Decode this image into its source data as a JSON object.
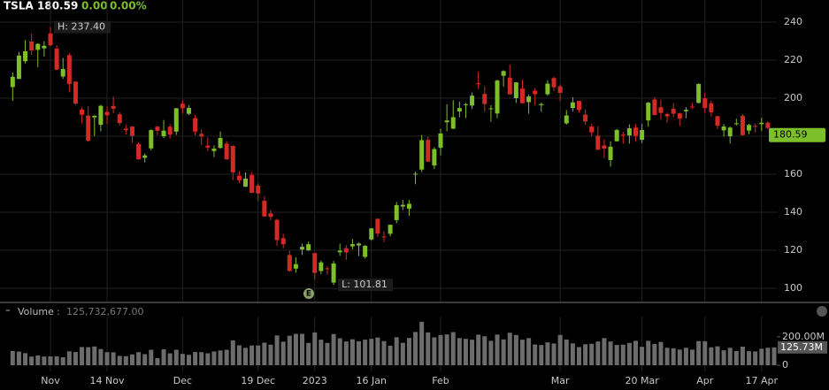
{
  "chart_data": {
    "type": "candlestick",
    "header": {
      "symbol": "TSLA",
      "last": "180.59",
      "change": "0.00",
      "change_pct": "0.00%"
    },
    "annotations": {
      "high": "H: 237.40",
      "low": "L: 101.81",
      "earnings": "E"
    },
    "categories": [
      null,
      null,
      null,
      null,
      null,
      null,
      "Nov",
      null,
      null,
      null,
      null,
      null,
      null,
      null,
      null,
      "14 Nov",
      null,
      null,
      null,
      null,
      null,
      null,
      null,
      null,
      null,
      null,
      null,
      "Dec",
      null,
      null,
      null,
      null,
      null,
      null,
      null,
      null,
      null,
      null,
      null,
      "19 Dec",
      null,
      null,
      null,
      null,
      null,
      null,
      null,
      null,
      "2023",
      null,
      null,
      null,
      null,
      null,
      null,
      null,
      null,
      "16 Jan",
      null,
      null,
      null,
      null,
      null,
      null,
      null,
      null,
      null,
      null,
      "Feb",
      null,
      null,
      null,
      null,
      null,
      null,
      null,
      null,
      null,
      null,
      null,
      null,
      null,
      null,
      null,
      null,
      null,
      null,
      "Mar",
      null,
      null,
      null,
      null,
      null,
      null,
      null,
      null,
      null,
      null,
      null,
      null,
      "20 Mar",
      null,
      null,
      null,
      null,
      null,
      null,
      null,
      null,
      null,
      "Apr",
      null,
      null,
      null,
      null,
      null,
      null,
      null,
      null,
      "17 Apr",
      null,
      null
    ],
    "open": [
      205.82,
      210.1,
      219.4,
      229.77,
      225.4,
      226.19,
      234.05,
      226.04,
      211.36,
      222.6,
      208.65,
      194.02,
      190.78,
      189.9,
      186.0,
      192.77,
      195.88,
      191.51,
      183.96,
      185.05,
      175.85,
      168.63,
      173.57,
      185.06,
      179.96,
      184.99,
      182.43,
      197.08,
      191.78,
      189.44,
      181.22,
      175.03,
      172.2,
      173.84,
      176.1,
      174.87,
      159.25,
      153.44,
      159.64,
      154.0,
      146.05,
      139.34,
      136.0,
      126.37,
      117.5,
      110.35,
      120.39,
      119.95,
      118.47,
      109.11,
      110.51,
      103.0,
      118.96,
      121.07,
      122.09,
      122.56,
      116.55,
      125.7,
      136.56,
      127.26,
      128.68,
      135.87,
      143.0,
      141.91,
      159.97,
      162.43,
      178.05,
      164.57,
      173.89,
      187.33,
      183.95,
      193.01,
      196.43,
      196.1,
      207.78,
      202.23,
      194.42,
      191.94,
      211.76,
      210.78,
      199.99,
      204.99,
      197.93,
      203.91,
      196.33,
      202.03,
      210.59,
      206.21,
      186.74,
      194.8,
      198.54,
      191.38,
      185.04,
      180.25,
      175.13,
      167.46,
      177.31,
      180.8,
      180.37,
      184.52,
      178.08,
      188.28,
      199.3,
      195.26,
      191.65,
      194.42,
      192.0,
      193.13,
      195.58,
      197.53,
      199.91,
      197.32,
      190.52,
      183.08,
      179.94,
      186.69,
      190.74,
      182.95,
      185.36,
      186.32,
      187.15,
      179.1
    ],
    "high": [
      213.5,
      224.35,
      230.6,
      233.81,
      228.86,
      229.85,
      237.4,
      227.87,
      221.2,
      223.8,
      208.9,
      195.2,
      195.89,
      191.0,
      196.52,
      195.73,
      200.82,
      192.57,
      186.16,
      185.19,
      176.77,
      170.92,
      183.62,
      185.2,
      188.5,
      186.38,
      194.76,
      198.92,
      196.25,
      191.27,
      183.65,
      179.38,
      175.2,
      182.5,
      177.37,
      175.05,
      161.62,
      160.93,
      160.99,
      155.25,
      148.47,
      141.26,
      136.63,
      128.62,
      119.67,
      116.27,
      123.57,
      124.48,
      118.8,
      114.59,
      111.75,
      114.39,
      123.52,
      122.76,
      125.95,
      124.13,
      122.63,
      131.7,
      136.68,
      129.99,
      133.51,
      145.38,
      146.5,
      146.41,
      161.42,
      180.68,
      179.77,
      174.3,
      183.81,
      196.75,
      199.0,
      198.17,
      197.5,
      203.0,
      214.0,
      206.2,
      196.3,
      209.82,
      214.66,
      217.65,
      208.44,
      209.71,
      201.99,
      205.14,
      197.67,
      209.42,
      211.23,
      207.2,
      193.75,
      200.48,
      198.6,
      194.2,
      186.5,
      185.18,
      178.29,
      177.35,
      183.8,
      182.34,
      186.22,
      186.22,
      186.44,
      198.0,
      200.66,
      199.31,
      192.36,
      197.39,
      192.35,
      195.29,
      197.33,
      207.79,
      202.69,
      198.74,
      190.68,
      186.39,
      185.1,
      189.19,
      191.58,
      186.5,
      186.57,
      189.69,
      187.69,
      183.5
    ],
    "low": [
      198.59,
      210.0,
      218.2,
      222.85,
      216.35,
      221.94,
      227.28,
      214.82,
      210.14,
      203.08,
      196.66,
      186.75,
      177.12,
      180.03,
      182.59,
      186.34,
      192.06,
      185.66,
      180.9,
      176.55,
      167.54,
      166.19,
      172.5,
      180.63,
      179.0,
      178.75,
      180.63,
      191.8,
      191.11,
      180.55,
      175.33,
      172.22,
      169.06,
      173.36,
      167.52,
      156.91,
      155.31,
      153.28,
      150.04,
      145.82,
      137.66,
      135.89,
      122.26,
      121.02,
      108.76,
      108.24,
      117.5,
      119.75,
      104.64,
      107.52,
      107.16,
      101.81,
      117.11,
      114.92,
      120.51,
      117.0,
      115.6,
      125.02,
      127.01,
      124.31,
      127.35,
      134.27,
      141.1,
      138.07,
      154.76,
      161.17,
      166.5,
      162.78,
      169.93,
      182.61,
      183.69,
      189.92,
      189.55,
      194.31,
      204.77,
      192.89,
      187.61,
      189.44,
      206.11,
      201.84,
      197.5,
      197.22,
      191.78,
      196.33,
      192.8,
      201.26,
      203.75,
      198.52,
      186.01,
      192.88,
      192.3,
      186.1,
      180.0,
      172.51,
      168.44,
      163.91,
      177.14,
      176.03,
      176.1,
      177.33,
      176.35,
      185.04,
      190.95,
      188.65,
      187.15,
      189.94,
      185.43,
      189.44,
      194.42,
      197.2,
      192.2,
      190.32,
      183.76,
      179.74,
      176.11,
      185.65,
      180.31,
      180.94,
      182.01,
      182.69,
      183.58,
      177.65
    ],
    "close": [
      211.25,
      222.42,
      224.64,
      225.09,
      228.52,
      227.54,
      227.82,
      214.98,
      215.31,
      207.47,
      197.08,
      191.3,
      177.59,
      190.72,
      195.97,
      190.95,
      194.42,
      186.92,
      183.17,
      180.19,
      167.87,
      169.91,
      183.2,
      182.86,
      182.92,
      180.83,
      194.7,
      194.7,
      194.86,
      182.45,
      179.82,
      174.04,
      173.44,
      179.05,
      167.82,
      160.95,
      156.8,
      157.67,
      150.23,
      149.87,
      137.8,
      137.57,
      125.35,
      123.15,
      109.1,
      112.71,
      121.82,
      123.18,
      108.1,
      113.64,
      110.34,
      113.06,
      119.77,
      118.85,
      123.22,
      123.56,
      122.4,
      131.49,
      128.78,
      127.17,
      133.42,
      143.75,
      143.89,
      144.43,
      160.27,
      177.9,
      166.66,
      173.22,
      181.41,
      188.27,
      189.98,
      194.76,
      196.81,
      201.29,
      207.32,
      196.89,
      194.64,
      209.25,
      214.24,
      202.04,
      208.31,
      197.37,
      200.86,
      202.07,
      196.88,
      207.63,
      205.71,
      202.77,
      190.9,
      197.79,
      193.81,
      187.71,
      182.0,
      172.92,
      173.44,
      174.48,
      183.26,
      180.45,
      184.13,
      180.13,
      183.25,
      197.58,
      191.15,
      192.22,
      190.41,
      191.81,
      189.19,
      193.88,
      195.28,
      207.46,
      194.77,
      192.58,
      185.52,
      185.06,
      184.51,
      186.79,
      180.54,
      185.9,
      185.0,
      187.04,
      184.31,
      180.59
    ],
    "up_color": "#7cbf2a",
    "down_color": "#d42a25",
    "ylim": [
      93.5,
      245.1
    ],
    "yticks": [
      100,
      120,
      140,
      160,
      180,
      200,
      220,
      240
    ],
    "grid": true,
    "volume": {
      "name": "Volume",
      "readout": "125,732,677.00",
      "badge": "125.73M",
      "color": "#6c6c6c",
      "values": [
        100,
        96,
        85,
        61,
        69,
        61,
        62,
        63,
        56,
        98,
        93,
        128,
        127,
        132,
        114,
        92,
        91,
        66,
        64,
        76,
        92,
        78,
        109,
        50,
        112,
        84,
        109,
        80,
        73,
        93,
        92,
        84,
        97,
        104,
        109,
        175,
        140,
        122,
        139,
        139,
        159,
        145,
        210,
        166,
        208,
        221,
        221,
        157,
        231,
        180,
        157,
        220,
        190,
        167,
        183,
        169,
        180,
        186,
        195,
        170,
        138,
        197,
        158,
        192,
        234,
        306,
        231,
        196,
        213,
        217,
        233,
        191,
        186,
        180,
        215,
        204,
        172,
        216,
        182,
        229,
        213,
        180,
        191,
        146,
        142,
        161,
        153,
        213,
        181,
        154,
        128,
        148,
        151,
        167,
        191,
        167,
        143,
        145,
        157,
        172,
        130,
        172,
        150,
        164,
        123,
        120,
        110,
        123,
        110,
        170,
        169,
        126,
        133,
        105,
        123,
        100,
        131,
        99,
        97,
        116,
        123,
        125.73
      ],
      "ylim": [
        0,
        330
      ],
      "yticks": [
        0,
        {
          "value": 200,
          "label": "200.00M"
        }
      ]
    }
  }
}
